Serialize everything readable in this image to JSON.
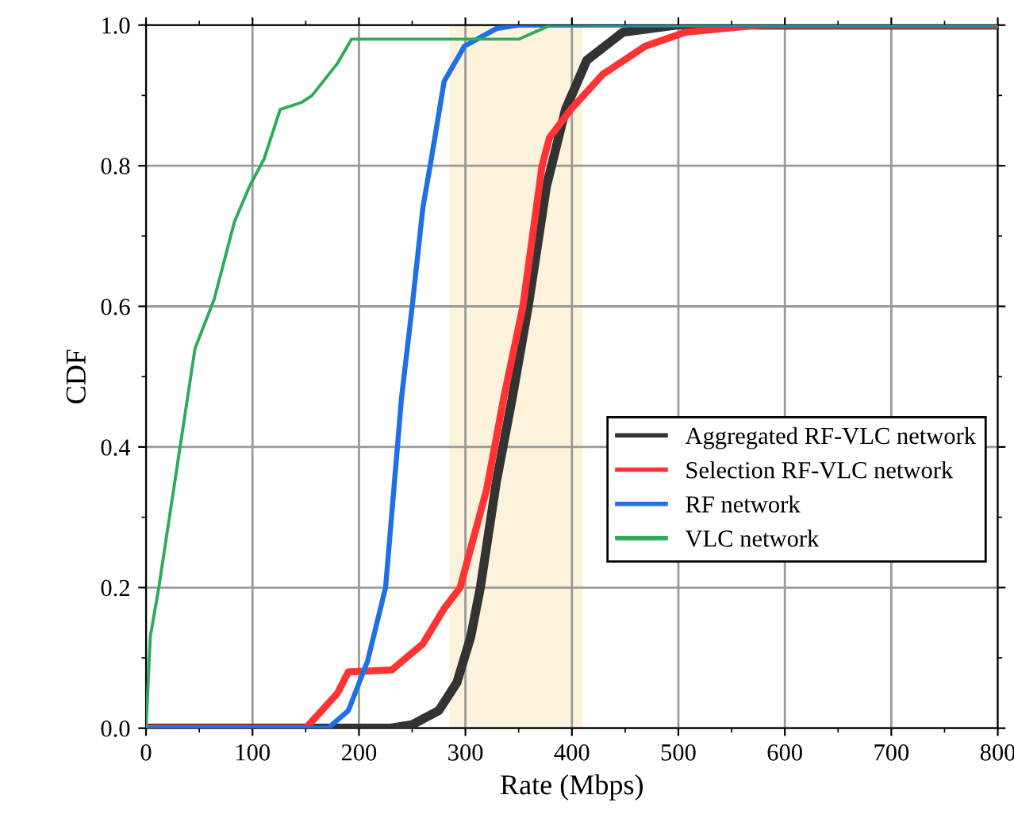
{
  "chart_data": {
    "type": "line",
    "xlabel": "Rate (Mbps)",
    "ylabel": "CDF",
    "xlim": [
      0,
      800
    ],
    "ylim": [
      0,
      1
    ],
    "xticks": [
      0,
      100,
      200,
      300,
      400,
      500,
      600,
      700,
      800
    ],
    "yticks": [
      {
        "value": 0,
        "label": "0.0"
      },
      {
        "value": 0.2,
        "label": "0.2"
      },
      {
        "value": 0.4,
        "label": "0.4"
      },
      {
        "value": 0.6,
        "label": "0.6"
      },
      {
        "value": 0.8,
        "label": "0.8"
      },
      {
        "value": 1.0,
        "label": "1.0"
      }
    ],
    "grid": true,
    "legend": "bottom right",
    "line_style": "solid",
    "marker": "none",
    "bands": [
      {
        "axis": "x",
        "from": 285,
        "to": 410,
        "color": "#fdf3dc"
      }
    ],
    "series": [
      {
        "name": "Aggregated RF-VLC network",
        "color": "#333333",
        "x": [
          0,
          230,
          250,
          275,
          292,
          305,
          314,
          329,
          344,
          359,
          376,
          394,
          414,
          448,
          498,
          800
        ],
        "values": [
          0,
          0,
          0.005,
          0.025,
          0.065,
          0.13,
          0.2,
          0.35,
          0.47,
          0.6,
          0.77,
          0.88,
          0.95,
          0.99,
          1.0,
          1.0
        ]
      },
      {
        "name": "Selection RF-VLC network",
        "color": "#ff3333",
        "x": [
          0,
          150,
          180,
          190,
          231,
          260,
          280,
          295,
          320,
          336,
          354,
          372,
          379,
          399,
          429,
          469,
          507,
          577,
          800
        ],
        "values": [
          0,
          0,
          0.05,
          0.08,
          0.083,
          0.12,
          0.17,
          0.2,
          0.34,
          0.47,
          0.6,
          0.8,
          0.84,
          0.88,
          0.93,
          0.97,
          0.99,
          1.0,
          1.0
        ]
      },
      {
        "name": "RF network",
        "color": "#1f6fe6",
        "x": [
          0,
          171,
          190,
          208,
          225,
          240,
          250,
          260,
          268,
          280,
          299,
          329,
          350,
          800
        ],
        "values": [
          0,
          0,
          0.025,
          0.095,
          0.2,
          0.47,
          0.6,
          0.74,
          0.81,
          0.92,
          0.97,
          0.995,
          1.0,
          1.0
        ]
      },
      {
        "name": "VLC network",
        "color": "#2eaa5a",
        "x": [
          0,
          4,
          12,
          37,
          46,
          64,
          83,
          97,
          111,
          126,
          146,
          156,
          180,
          193,
          350,
          380,
          800
        ],
        "values": [
          0,
          0.13,
          0.2,
          0.45,
          0.54,
          0.61,
          0.72,
          0.77,
          0.81,
          0.88,
          0.89,
          0.9,
          0.946,
          0.98,
          0.98,
          1.0,
          1.0
        ]
      }
    ]
  }
}
